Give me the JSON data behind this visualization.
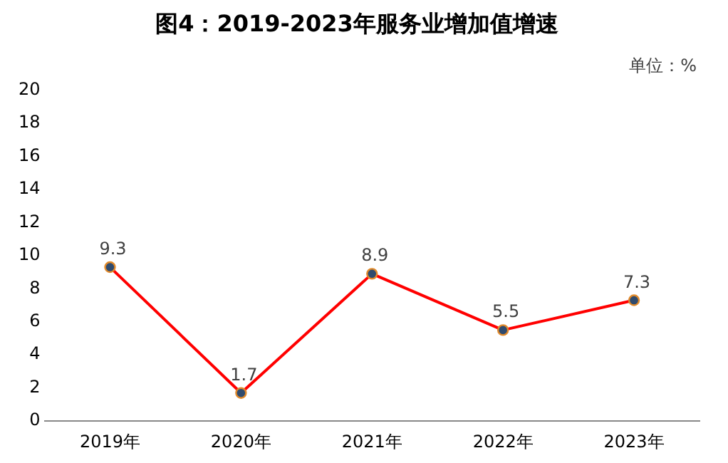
{
  "chart_data": {
    "type": "line",
    "title": "图4：2019-2023年服务业增加值增速",
    "annotations": [
      "单位：%"
    ],
    "categories": [
      "2019年",
      "2020年",
      "2021年",
      "2022年",
      "2023年"
    ],
    "series": [
      {
        "color": "#ff0000",
        "values": [
          9.3,
          1.7,
          8.9,
          5.5,
          7.3
        ]
      }
    ],
    "ylim": [
      0,
      20
    ],
    "yticks": [
      0,
      2,
      4,
      6,
      8,
      10,
      12,
      14,
      16,
      18,
      20
    ],
    "grid": false,
    "legend": false,
    "marker": "circle",
    "line_style": "solid",
    "data_labels": true
  }
}
